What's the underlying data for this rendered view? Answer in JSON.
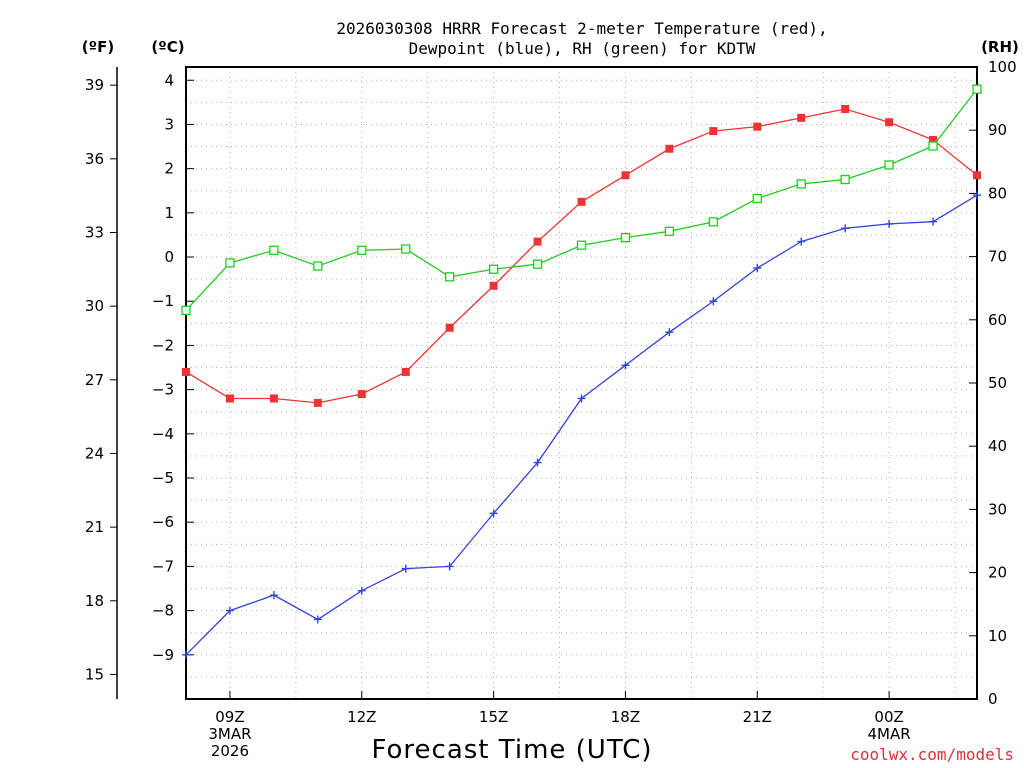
{
  "chart_data": {
    "type": "line",
    "title_line1": "2026030308 HRRR Forecast 2-meter Temperature (red),",
    "title_line2": "Dewpoint (blue), RH (green) for KDTW",
    "xlabel": "Forecast Time (UTC)",
    "credit": "coolwx.com/models",
    "left_unit_f": "(ºF)",
    "left_unit_c": "(ºC)",
    "right_unit": "(RH)",
    "x_hours": [
      8,
      9,
      10,
      11,
      12,
      13,
      14,
      15,
      16,
      17,
      18,
      19,
      20,
      21,
      22,
      23,
      24,
      25,
      26
    ],
    "xlim": [
      8,
      26
    ],
    "x_ticks": [
      {
        "hour": 9,
        "line1": "09Z",
        "line2": "3MAR",
        "line3": "2026"
      },
      {
        "hour": 12,
        "line1": "12Z",
        "line2": "",
        "line3": ""
      },
      {
        "hour": 15,
        "line1": "15Z",
        "line2": "",
        "line3": ""
      },
      {
        "hour": 18,
        "line1": "18Z",
        "line2": "",
        "line3": ""
      },
      {
        "hour": 21,
        "line1": "21Z",
        "line2": "",
        "line3": ""
      },
      {
        "hour": 24,
        "line1": "00Z",
        "line2": "4MAR",
        "line3": ""
      }
    ],
    "ylim_c": [
      -10,
      4.3
    ],
    "yticks_c": [
      "-9",
      "-8",
      "-7",
      "-6",
      "-5",
      "-4",
      "-3",
      "-2",
      "-1",
      "0",
      "1",
      "2",
      "3",
      "4"
    ],
    "yticks_f": [
      "15",
      "18",
      "21",
      "24",
      "27",
      "30",
      "33",
      "36",
      "39"
    ],
    "ylim_rh": [
      0,
      100
    ],
    "yticks_rh": [
      "0",
      "10",
      "20",
      "30",
      "40",
      "50",
      "60",
      "70",
      "80",
      "90",
      "100"
    ],
    "series": [
      {
        "name": "Temperature",
        "unit": "C",
        "color": "#ee3333",
        "marker": "filled-square",
        "values": [
          -2.6,
          -3.2,
          -3.2,
          -3.3,
          -3.1,
          -2.6,
          -1.6,
          -0.65,
          0.35,
          1.25,
          1.85,
          2.45,
          2.85,
          2.95,
          3.15,
          3.35,
          3.05,
          2.65,
          1.85
        ]
      },
      {
        "name": "Dewpoint",
        "unit": "C",
        "color": "#3344dd",
        "marker": "plus",
        "values": [
          -9.0,
          -8.0,
          -7.65,
          -8.2,
          -7.55,
          -7.05,
          -7.0,
          -5.8,
          -4.65,
          -3.2,
          -2.45,
          -1.7,
          -1.0,
          -0.25,
          0.35,
          0.65,
          0.75,
          0.8,
          1.4
        ]
      },
      {
        "name": "RH",
        "unit": "%",
        "color": "#22cc22",
        "marker": "open-square",
        "values": [
          61.5,
          69.0,
          71.0,
          68.5,
          71.0,
          71.2,
          66.8,
          68.0,
          68.8,
          71.8,
          73.0,
          74.0,
          75.5,
          79.2,
          81.5,
          82.2,
          84.5,
          87.5,
          96.5
        ]
      }
    ]
  }
}
